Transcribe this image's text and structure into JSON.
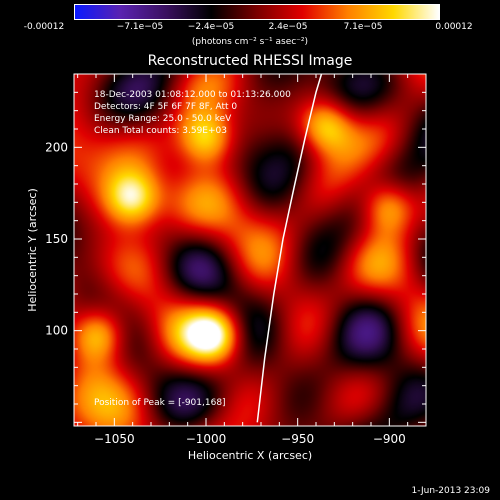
{
  "colorbar": {
    "ticks": [
      "-0.00012",
      "−7.1e−05",
      "−2.4e−05",
      "2.4e−05",
      "7.1e−05",
      "0.00012"
    ],
    "units": "(photons cm⁻² s⁻¹ asec⁻²)",
    "colors": [
      "#0a1aff",
      "#5a22b0",
      "#3a1060",
      "#000000",
      "#7a0000",
      "#e00000",
      "#ff8000",
      "#ffd800",
      "#ffffff"
    ]
  },
  "info": {
    "line1": "18-Dec-2003 01:08:12.000 to 01:13:26.000",
    "line2": "Detectors: 4F 5F 6F 7F 8F, Att 0",
    "line3": "Energy Range: 25.0 - 50.0 keV",
    "line4": "Clean    Total counts: 3.59E+03",
    "peak": "Position of Peak = [-901,168]"
  },
  "footer": {
    "date": "1-Jun-2013 23:09"
  },
  "chart_data": {
    "type": "heatmap",
    "title": "Reconstructed RHESSI Image",
    "xlabel": "Heliocentric X (arcsec)",
    "ylabel": "Heliocentric Y (arcsec)",
    "xlim": [
      -1072,
      -880
    ],
    "ylim": [
      48,
      240
    ],
    "xticks": [
      -1050,
      -1000,
      -950,
      -900
    ],
    "yticks": [
      100,
      150,
      200
    ],
    "colorbar_range": [
      -0.00012,
      0.00012
    ],
    "peak": [
      -901,
      168
    ],
    "bright_sources": [
      {
        "x": -1040,
        "y": 172
      },
      {
        "x": -901,
        "y": 168
      },
      {
        "x": -935,
        "y": 212
      },
      {
        "x": -995,
        "y": 98
      },
      {
        "x": -1058,
        "y": 98
      },
      {
        "x": -1000,
        "y": 205
      }
    ],
    "limb": [
      [
        -972,
        50
      ],
      [
        -968,
        85
      ],
      [
        -963,
        120
      ],
      [
        -958,
        150
      ],
      [
        -952,
        178
      ],
      [
        -946,
        205
      ],
      [
        -940,
        230
      ],
      [
        -937,
        240
      ]
    ]
  }
}
